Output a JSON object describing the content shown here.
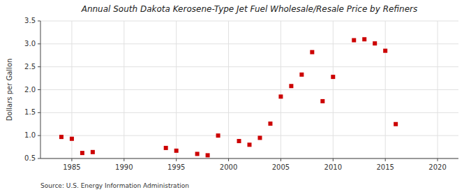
{
  "chart_data": {
    "type": "scatter",
    "title": "Annual South Dakota Kerosene-Type Jet Fuel Wholesale/Resale Price by Refiners",
    "ylabel": "Dollars per Gallon",
    "source": "Source: U.S. Energy Information Administration",
    "x": [
      1984,
      1985,
      1986,
      1987,
      1994,
      1995,
      1997,
      1998,
      1999,
      2001,
      2002,
      2003,
      2004,
      2005,
      2006,
      2007,
      2008,
      2009,
      2010,
      2012,
      2013,
      2014,
      2015,
      2016
    ],
    "values": [
      0.97,
      0.93,
      0.62,
      0.64,
      0.73,
      0.67,
      0.6,
      0.57,
      1.0,
      0.88,
      0.8,
      0.95,
      1.26,
      1.85,
      2.08,
      2.33,
      2.82,
      1.75,
      2.28,
      3.08,
      3.1,
      3.01,
      2.85,
      1.25
    ],
    "color": "#cc0000",
    "marker": "square",
    "xlim": [
      1982,
      2022
    ],
    "ylim": [
      0.5,
      3.5
    ],
    "xticks": [
      1985,
      1990,
      1995,
      2000,
      2005,
      2010,
      2015,
      2020
    ],
    "yticks": [
      0.5,
      {
        "value": 1.0,
        "label": "1.0"
      },
      1.5,
      {
        "value": 2.0,
        "label": "2.0"
      },
      2.5,
      {
        "value": 3.0,
        "label": "3.0"
      },
      3.5
    ],
    "grid": true
  }
}
